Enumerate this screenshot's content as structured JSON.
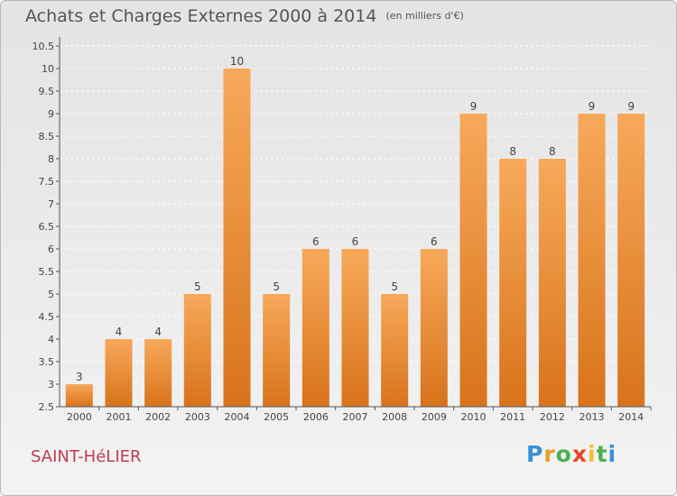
{
  "header": {
    "title": "Achats et Charges Externes 2000 à 2014",
    "unit": "(en milliers d'€)"
  },
  "footer": {
    "commune": "SAINT-HéLIER",
    "logo": {
      "letters": [
        "P",
        "r",
        "o",
        "x",
        "i",
        "t",
        "i"
      ],
      "colors": [
        "#3a8fd6",
        "#e8a020",
        "#4caf50",
        "#e8452c",
        "#f2c12e",
        "#4caf50",
        "#3a8fd6"
      ]
    }
  },
  "colors": {
    "bar_top": "#f7a95a",
    "bar_bottom": "#d8731b",
    "axis": "#555555",
    "grid": "#ffffff"
  },
  "chart_data": {
    "type": "bar",
    "categories": [
      "2000",
      "2001",
      "2002",
      "2003",
      "2004",
      "2005",
      "2006",
      "2007",
      "2008",
      "2009",
      "2010",
      "2011",
      "2012",
      "2013",
      "2014"
    ],
    "values": [
      3,
      4,
      4,
      5,
      10,
      5,
      6,
      6,
      5,
      6,
      9,
      8,
      8,
      9,
      9
    ],
    "title": "Achats et Charges Externes 2000 à 2014",
    "subtitle": "(en milliers d'€)",
    "ylim": [
      2.5,
      10.5
    ],
    "yticks": [
      "2.5",
      "3",
      "3.5",
      "4",
      "4.5",
      "5",
      "5.5",
      "6",
      "6.5",
      "7",
      "7.5",
      "8",
      "8.5",
      "9",
      "9.5",
      "10",
      "10.5"
    ],
    "grid": "horizontal, dashed",
    "legend": "none"
  }
}
